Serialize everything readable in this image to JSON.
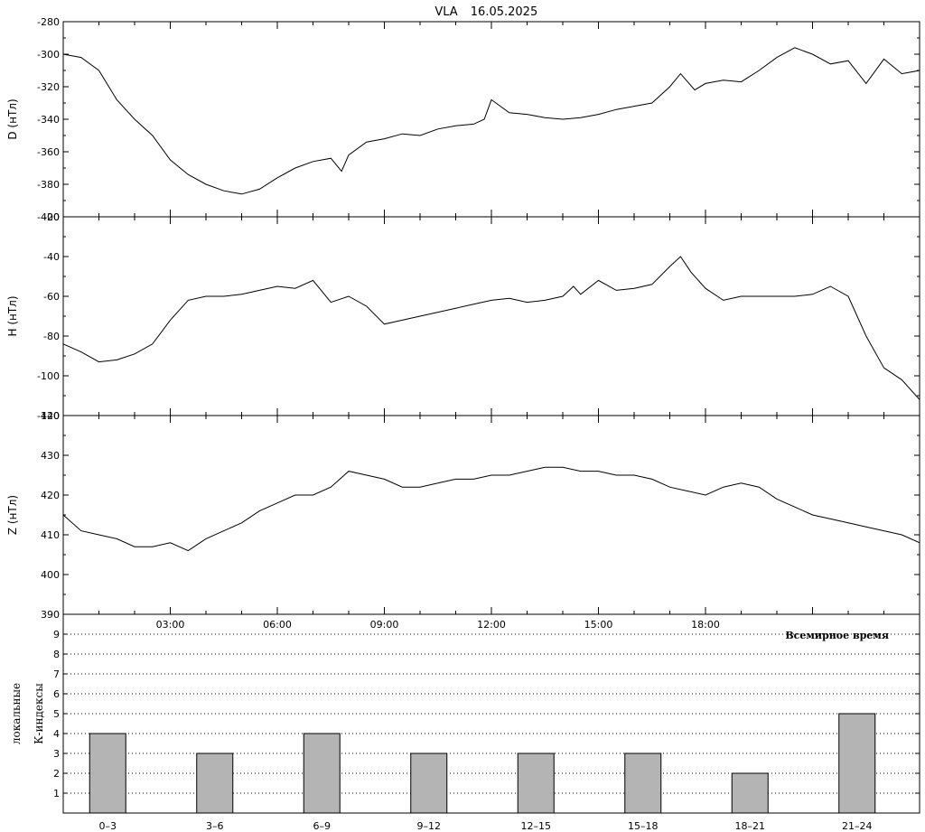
{
  "title": {
    "station": "VLA",
    "date": "16.05.2025"
  },
  "colors": {
    "line": "#000000",
    "bar_fill": "#b4b4b4",
    "grid": "#000000"
  },
  "x_axis": {
    "ticks": [
      "03:00",
      "06:00",
      "09:00",
      "12:00",
      "15:00",
      "18:00"
    ],
    "tick_hours": [
      3,
      6,
      9,
      12,
      15,
      18
    ],
    "range_hours": [
      0,
      24
    ],
    "label": "Всемирное время"
  },
  "chart_data": [
    {
      "type": "line",
      "ylabel": "D (нТл)",
      "ylim": [
        -400,
        -280
      ],
      "y_ticks": [
        -280,
        -300,
        -320,
        -340,
        -360,
        -380,
        -400
      ],
      "x_unit": "hours UT",
      "x": [
        0,
        0.5,
        1,
        1.5,
        2,
        2.5,
        3,
        3.5,
        4,
        4.5,
        5,
        5.5,
        6,
        6.5,
        7,
        7.5,
        7.8,
        8,
        8.5,
        9,
        9.5,
        10,
        10.5,
        11,
        11.5,
        11.8,
        12,
        12.5,
        13,
        13.5,
        14,
        14.5,
        15,
        15.5,
        16,
        16.5,
        17,
        17.3,
        17.7,
        18,
        18.5,
        19,
        19.5,
        20,
        20.5,
        21,
        21.5,
        22,
        22.5,
        23,
        23.5,
        24
      ],
      "values": [
        -300,
        -302,
        -310,
        -328,
        -340,
        -350,
        -365,
        -374,
        -380,
        -384,
        -386,
        -383,
        -376,
        -370,
        -366,
        -364,
        -372,
        -362,
        -354,
        -352,
        -349,
        -350,
        -346,
        -344,
        -343,
        -340,
        -328,
        -336,
        -337,
        -339,
        -340,
        -339,
        -337,
        -334,
        -332,
        -330,
        -320,
        -312,
        -322,
        -318,
        -316,
        -317,
        -310,
        -302,
        -296,
        -300,
        -306,
        -304,
        -318,
        -303,
        -312,
        -310
      ]
    },
    {
      "type": "line",
      "ylabel": "H (нТл)",
      "ylim": [
        -120,
        -20
      ],
      "y_ticks": [
        -20,
        -40,
        -60,
        -80,
        -100,
        -120
      ],
      "x_unit": "hours UT",
      "x": [
        0,
        0.5,
        1,
        1.5,
        2,
        2.5,
        3,
        3.5,
        4,
        4.5,
        5,
        5.5,
        6,
        6.5,
        7,
        7.5,
        8,
        8.5,
        9,
        9.5,
        10,
        10.5,
        11,
        11.5,
        12,
        12.5,
        13,
        13.5,
        14,
        14.3,
        14.5,
        15,
        15.5,
        16,
        16.5,
        17,
        17.3,
        17.6,
        18,
        18.5,
        19,
        19.5,
        20,
        20.5,
        21,
        21.5,
        22,
        22.5,
        23,
        23.5,
        24
      ],
      "values": [
        -84,
        -88,
        -93,
        -92,
        -89,
        -84,
        -72,
        -62,
        -60,
        -60,
        -59,
        -57,
        -55,
        -56,
        -52,
        -63,
        -60,
        -65,
        -74,
        -72,
        -70,
        -68,
        -66,
        -64,
        -62,
        -61,
        -63,
        -62,
        -60,
        -55,
        -59,
        -52,
        -57,
        -56,
        -54,
        -45,
        -40,
        -48,
        -56,
        -62,
        -60,
        -60,
        -60,
        -60,
        -59,
        -55,
        -60,
        -80,
        -96,
        -102,
        -112
      ]
    },
    {
      "type": "line",
      "ylabel": "Z (нТл)",
      "ylim": [
        390,
        440
      ],
      "y_ticks": [
        390,
        400,
        410,
        420,
        430,
        440
      ],
      "x_unit": "hours UT",
      "x": [
        0,
        0.5,
        1,
        1.5,
        2,
        2.5,
        3,
        3.5,
        4,
        4.5,
        5,
        5.5,
        6,
        6.5,
        7,
        7.5,
        8,
        8.5,
        9,
        9.5,
        10,
        10.5,
        11,
        11.5,
        12,
        12.5,
        13,
        13.5,
        14,
        14.5,
        15,
        15.5,
        16,
        16.5,
        17,
        17.5,
        18,
        18.5,
        19,
        19.5,
        20,
        20.5,
        21,
        21.5,
        22,
        22.5,
        23,
        23.5,
        24
      ],
      "values": [
        415,
        411,
        410,
        409,
        407,
        407,
        408,
        406,
        409,
        411,
        413,
        416,
        418,
        420,
        420,
        422,
        426,
        425,
        424,
        422,
        422,
        423,
        424,
        424,
        425,
        425,
        426,
        427,
        427,
        426,
        426,
        425,
        425,
        424,
        422,
        421,
        420,
        422,
        423,
        422,
        419,
        417,
        415,
        414,
        413,
        412,
        411,
        410,
        408
      ]
    },
    {
      "type": "bar",
      "ylabel": "К-индексы",
      "ylabel_line2": "локальные",
      "ylim": [
        0,
        10
      ],
      "y_ticks": [
        1,
        2,
        3,
        4,
        5,
        6,
        7,
        8,
        9
      ],
      "categories": [
        "0–3",
        "3–6",
        "6–9",
        "9–12",
        "12–15",
        "15–18",
        "18–21",
        "21–24"
      ],
      "values": [
        4,
        3,
        4,
        3,
        3,
        3,
        2,
        5
      ],
      "grid": "dotted horizontal"
    }
  ]
}
